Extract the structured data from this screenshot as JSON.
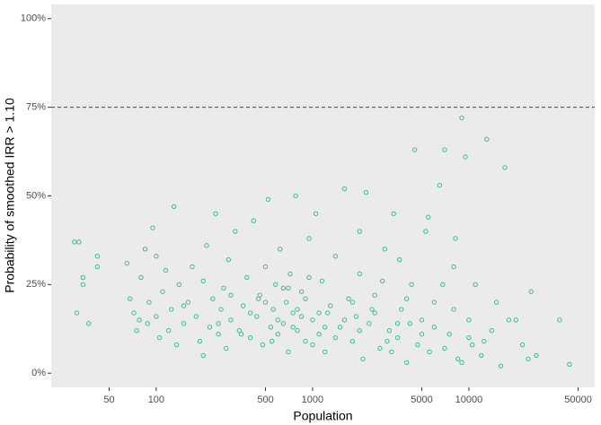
{
  "chart_data": {
    "type": "scatter",
    "x_label": "Population",
    "y_label": "Probability of smoothed IRR > 1.10",
    "x_log": true,
    "xlim": [
      21.3,
      63800
    ],
    "xticks": [
      50,
      100,
      500,
      1000,
      5000,
      10000,
      50000
    ],
    "ylim": [
      -4,
      104
    ],
    "yticks": [
      {
        "value": 0,
        "label": "0%"
      },
      {
        "value": 25,
        "label": "25%"
      },
      {
        "value": 50,
        "label": "50%"
      },
      {
        "value": 75,
        "label": "75%"
      },
      {
        "value": 100,
        "label": "100%"
      }
    ],
    "hline": 75,
    "color": "#3cbb9c",
    "background": "#ebebeb",
    "x": [
      30,
      32,
      31,
      34,
      34,
      37,
      42,
      42,
      65,
      68,
      72,
      75,
      78,
      80,
      85,
      88,
      90,
      95,
      100,
      100,
      105,
      110,
      115,
      120,
      125,
      130,
      135,
      140,
      150,
      160,
      170,
      180,
      190,
      200,
      210,
      220,
      230,
      240,
      250,
      260,
      270,
      280,
      290,
      300,
      320,
      340,
      360,
      380,
      400,
      420,
      440,
      460,
      480,
      500,
      520,
      540,
      560,
      580,
      600,
      620,
      650,
      680,
      700,
      720,
      750,
      780,
      800,
      850,
      900,
      950,
      1000,
      1050,
      1100,
      1150,
      1200,
      1300,
      1400,
      1500,
      1600,
      1700,
      1800,
      1900,
      2000,
      2100,
      2200,
      2300,
      2500,
      2700,
      2900,
      3100,
      3300,
      3500,
      3700,
      4000,
      4300,
      4500,
      4700,
      5000,
      5300,
      5600,
      6000,
      6500,
      7000,
      7500,
      8000,
      8500,
      9000,
      9500,
      10000,
      10500,
      11000,
      12000,
      13000,
      14000,
      15000,
      16000,
      17000,
      18000,
      20000,
      22000,
      24000,
      25000,
      27000,
      38000,
      44000,
      200,
      300,
      400,
      500,
      600,
      700,
      800,
      900,
      1000,
      1100,
      1200,
      1400,
      1600,
      1800,
      2000,
      2500,
      3000,
      3500,
      4000,
      5000,
      6000,
      7000,
      8000,
      9000,
      10000,
      150,
      250,
      350,
      450,
      550,
      650,
      750,
      850,
      950,
      1250,
      2000,
      2400,
      2800,
      3200,
      3600,
      4200,
      5500,
      6800,
      8200,
      12500
    ],
    "values": [
      37,
      37,
      17,
      27,
      25,
      14,
      33,
      30,
      31,
      21,
      17,
      12,
      15,
      27,
      35,
      14,
      20,
      41,
      16,
      33,
      10,
      23,
      29,
      12,
      18,
      47,
      8,
      25,
      14,
      20,
      30,
      16,
      9,
      26,
      36,
      13,
      21,
      45,
      11,
      18,
      24,
      7,
      32,
      15,
      40,
      12,
      19,
      27,
      10,
      43,
      16,
      22,
      8,
      30,
      49,
      13,
      18,
      25,
      11,
      35,
      14,
      20,
      6,
      28,
      17,
      50,
      12,
      23,
      9,
      38,
      15,
      45,
      11,
      26,
      6,
      19,
      33,
      13,
      52,
      21,
      9,
      16,
      28,
      4,
      51,
      14,
      22,
      7,
      35,
      12,
      45,
      10,
      18,
      3,
      25,
      63,
      8,
      15,
      40,
      6,
      20,
      53,
      63,
      11,
      30,
      4,
      72,
      61,
      15,
      8,
      25,
      5,
      66,
      12,
      20,
      2,
      58,
      15,
      15,
      8,
      4,
      23,
      5,
      15,
      2.5,
      5,
      22,
      17,
      20,
      15,
      24,
      18,
      21,
      8,
      17,
      13,
      10,
      15,
      20,
      12,
      17,
      9,
      14,
      21,
      11,
      13,
      7,
      18,
      3,
      10,
      19,
      14,
      11,
      21,
      9,
      24,
      13,
      16,
      27,
      17,
      40,
      18,
      26,
      6,
      32,
      14,
      44,
      25,
      38,
      9
    ]
  }
}
